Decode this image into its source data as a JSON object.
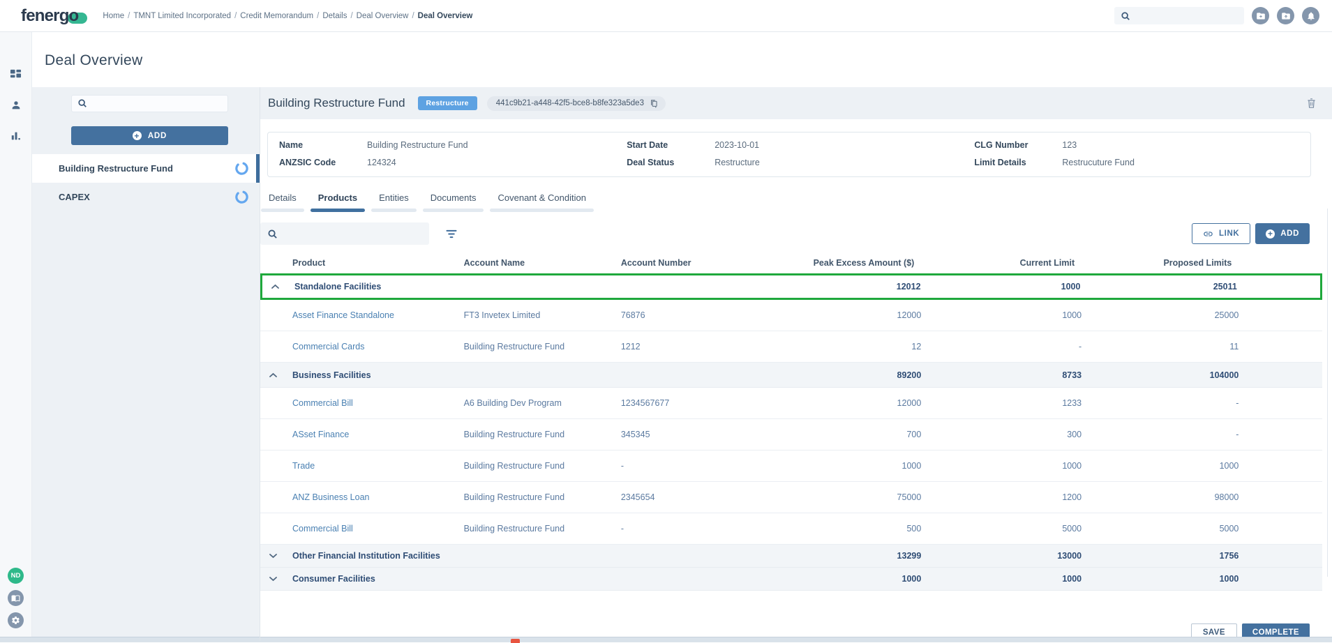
{
  "brand": {
    "logo_text": "fenergo"
  },
  "topbar": {
    "breadcrumb": [
      "Home",
      "TMNT Limited Incorporated",
      "Credit Memorandum",
      "Details",
      "Deal Overview",
      "Deal Overview"
    ],
    "search_value": "",
    "icons": [
      "add-folder",
      "upload-folder",
      "notifications-bell"
    ]
  },
  "page": {
    "title": "Deal Overview"
  },
  "deal_list": {
    "search_value": "",
    "add_label": "ADD",
    "items": [
      {
        "name": "Building Restructure Fund",
        "active": true
      },
      {
        "name": "CAPEX",
        "active": false
      }
    ]
  },
  "deal_header": {
    "title": "Building Restructure Fund",
    "status_badge": "Restructure",
    "deal_id": "441c9b21-a448-42f5-bce8-b8fe323a5de3"
  },
  "deal_info": {
    "fields": [
      {
        "label": "Name",
        "value": "Building Restructure Fund"
      },
      {
        "label": "Start Date",
        "value": "2023-10-01"
      },
      {
        "label": "CLG Number",
        "value": "123"
      },
      {
        "label": "ANZSIC Code",
        "value": "124324"
      },
      {
        "label": "Deal Status",
        "value": "Restructure"
      },
      {
        "label": "Limit Details",
        "value": "Restrucuture Fund"
      }
    ]
  },
  "tabs": [
    {
      "label": "Details",
      "active": false
    },
    {
      "label": "Products",
      "active": true
    },
    {
      "label": "Entities",
      "active": false
    },
    {
      "label": "Documents",
      "active": false
    },
    {
      "label": "Covenant & Condition",
      "active": false
    }
  ],
  "products_toolbar": {
    "search_value": "",
    "link_label": "LINK",
    "add_label": "ADD"
  },
  "products_table": {
    "columns": [
      "Product",
      "Account Name",
      "Account Number",
      "Peak Excess Amount ($)",
      "Current Limit",
      "Proposed Limits"
    ],
    "rows": [
      {
        "type": "group",
        "expanded": true,
        "highlighted": true,
        "product": "Standalone Facilities",
        "account_name": "",
        "account_number": "",
        "peak_excess": "12012",
        "current_limit": "1000",
        "proposed_limits": "25011"
      },
      {
        "type": "detail",
        "product": "Asset Finance Standalone",
        "account_name": "FT3 Invetex Limited",
        "account_number": "76876",
        "peak_excess": "12000",
        "current_limit": "1000",
        "proposed_limits": "25000"
      },
      {
        "type": "detail",
        "product": "Commercial Cards",
        "account_name": "Building Restructure Fund",
        "account_number": "1212",
        "peak_excess": "12",
        "current_limit": "-",
        "proposed_limits": "11"
      },
      {
        "type": "group",
        "expanded": true,
        "highlighted": false,
        "product": "Business Facilities",
        "account_name": "",
        "account_number": "",
        "peak_excess": "89200",
        "current_limit": "8733",
        "proposed_limits": "104000"
      },
      {
        "type": "detail",
        "product": "Commercial Bill",
        "account_name": "A6 Building Dev Program",
        "account_number": "1234567677",
        "peak_excess": "12000",
        "current_limit": "1233",
        "proposed_limits": "-"
      },
      {
        "type": "detail",
        "product": "ASset Finance",
        "account_name": "Building Restructure Fund",
        "account_number": "345345",
        "peak_excess": "700",
        "current_limit": "300",
        "proposed_limits": "-"
      },
      {
        "type": "detail",
        "product": "Trade",
        "account_name": "Building Restructure Fund",
        "account_number": "-",
        "peak_excess": "1000",
        "current_limit": "1000",
        "proposed_limits": "1000"
      },
      {
        "type": "detail",
        "product": "ANZ Business Loan",
        "account_name": "Building Restructure Fund",
        "account_number": "2345654",
        "peak_excess": "75000",
        "current_limit": "1200",
        "proposed_limits": "98000"
      },
      {
        "type": "detail",
        "product": "Commercial Bill",
        "account_name": "Building Restructure Fund",
        "account_number": "-",
        "peak_excess": "500",
        "current_limit": "5000",
        "proposed_limits": "5000"
      },
      {
        "type": "group",
        "expanded": false,
        "highlighted": false,
        "product": "Other Financial Institution Facilities",
        "account_name": "",
        "account_number": "",
        "peak_excess": "13299",
        "current_limit": "13000",
        "proposed_limits": "1756"
      },
      {
        "type": "group",
        "expanded": false,
        "highlighted": false,
        "product": "Consumer Facilities",
        "account_name": "",
        "account_number": "",
        "peak_excess": "1000",
        "current_limit": "1000",
        "proposed_limits": "1000"
      }
    ]
  },
  "footer": {
    "save_label": "SAVE",
    "complete_label": "COMPLETE"
  },
  "sidebar": {
    "user_initials": "ND"
  },
  "colors": {
    "primary": "#44719f",
    "badge_blue": "#5ea2e2",
    "highlight_green": "#1fa83c",
    "avatar_green": "#2eb98a",
    "brand_teal": "#35b792"
  }
}
